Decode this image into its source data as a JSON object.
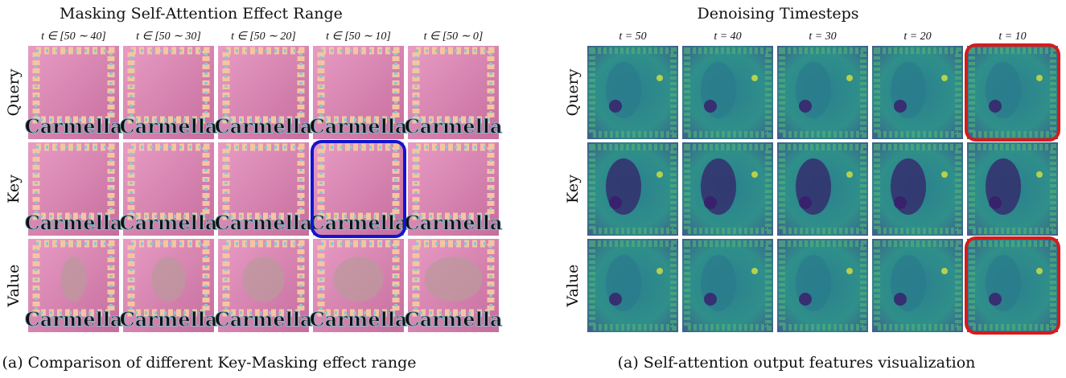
{
  "left": {
    "title": "Masking Self-Attention Effect Range",
    "columns": [
      "t ∈ [50 ∼ 40]",
      "t ∈ [50 ∼ 30]",
      "t ∈ [50 ∼ 20]",
      "t ∈ [50 ∼ 10]",
      "t ∈ [50 ∼ 0]"
    ],
    "rows": [
      "Query",
      "Key",
      "Value"
    ],
    "caption": "(a) Comparison of different Key-Masking effect range"
  },
  "right": {
    "title": "Denoising Timesteps",
    "columns": [
      "t = 50",
      "t = 40",
      "t = 30",
      "t = 20",
      "t = 10"
    ],
    "rows": [
      "Query",
      "Key",
      "Value"
    ],
    "caption": "(a) Self-attention output features visualization"
  }
}
